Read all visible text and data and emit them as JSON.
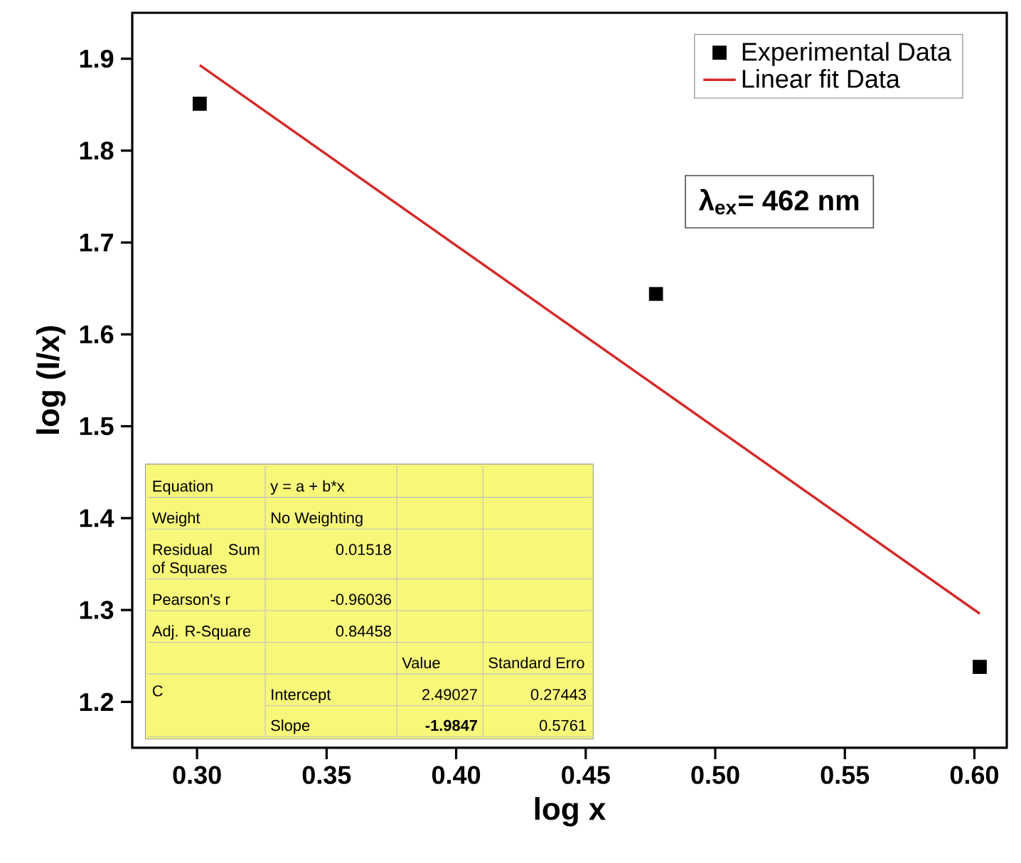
{
  "chart_data": {
    "type": "scatter",
    "xlabel": "log x",
    "ylabel": "log (I/x)",
    "xlim": [
      0.275,
      0.6125
    ],
    "ylim": [
      1.15,
      1.95
    ],
    "xticks": [
      {
        "value": 0.3,
        "label": "0.30"
      },
      {
        "value": 0.35,
        "label": "0.35"
      },
      {
        "value": 0.4,
        "label": "0.40"
      },
      {
        "value": 0.45,
        "label": "0.45"
      },
      {
        "value": 0.5,
        "label": "0.50"
      },
      {
        "value": 0.55,
        "label": "0.55"
      },
      {
        "value": 0.6,
        "label": "0.60"
      }
    ],
    "yticks": [
      {
        "value": 1.2,
        "label": "1.2"
      },
      {
        "value": 1.3,
        "label": "1.3"
      },
      {
        "value": 1.4,
        "label": "1.4"
      },
      {
        "value": 1.5,
        "label": "1.5"
      },
      {
        "value": 1.6,
        "label": "1.6"
      },
      {
        "value": 1.7,
        "label": "1.7"
      },
      {
        "value": 1.8,
        "label": "1.8"
      },
      {
        "value": 1.9,
        "label": "1.9"
      }
    ],
    "legend": "top right",
    "series": [
      {
        "name": "Experimental Data",
        "marker": "square",
        "color": "#000000",
        "x": [
          0.30103,
          0.47712,
          0.60206
        ],
        "values": [
          1.851,
          1.644,
          1.238
        ]
      },
      {
        "name": "Linear fit Data",
        "type": "line",
        "marker": "none",
        "color": "#d42a2a",
        "x": [
          0.30103,
          0.60206
        ],
        "values": [
          1.893,
          1.296
        ]
      }
    ],
    "annotations": [
      "**λ$_{ex}$= 462 nm**",
      "Equation",
      "y = a + b*x",
      null,
      null,
      "Weight",
      "No Weighting",
      null,
      null,
      "Residual Sum of Squares",
      "0.01518",
      null,
      null,
      "Pearson's r",
      "-0.96036",
      null,
      null,
      "Adj. R-Square",
      "0.84458",
      null,
      null,
      null,
      null,
      "Value",
      "Standard Erro",
      "C",
      "Intercept",
      "2.49027",
      "0.27443",
      null,
      "Slope",
      "**-1.9847**",
      "0.5761"
    ]
  }
}
